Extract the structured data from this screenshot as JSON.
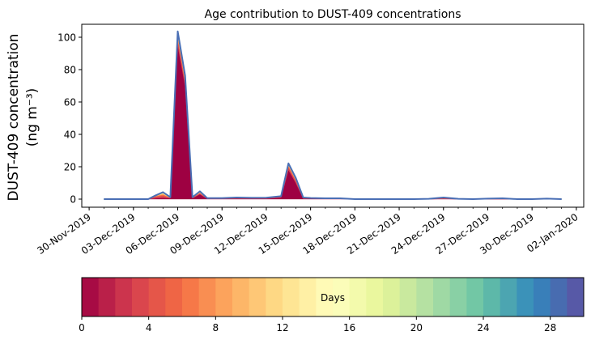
{
  "chart_data": {
    "type": "area",
    "title": "Age contribution to DUST-409 concentrations",
    "ylabel_line1": "DUST-409 concentration",
    "ylabel_line2": "(ng m⁻³)",
    "xlabel": "",
    "ylim": [
      -5,
      108
    ],
    "y_ticks": [
      0,
      20,
      40,
      60,
      80,
      100
    ],
    "x_range": [
      "2019-11-29T12:00",
      "2020-01-02T12:00"
    ],
    "x_ticks": [
      {
        "date": "2019-11-30",
        "label": "30-Nov-2019"
      },
      {
        "date": "2019-12-03",
        "label": "03-Dec-2019"
      },
      {
        "date": "2019-12-06",
        "label": "06-Dec-2019"
      },
      {
        "date": "2019-12-09",
        "label": "09-Dec-2019"
      },
      {
        "date": "2019-12-12",
        "label": "12-Dec-2019"
      },
      {
        "date": "2019-12-15",
        "label": "15-Dec-2019"
      },
      {
        "date": "2019-12-18",
        "label": "18-Dec-2019"
      },
      {
        "date": "2019-12-21",
        "label": "21-Dec-2019"
      },
      {
        "date": "2019-12-24",
        "label": "24-Dec-2019"
      },
      {
        "date": "2019-12-27",
        "label": "27-Dec-2019"
      },
      {
        "date": "2019-12-30",
        "label": "30-Dec-2019"
      },
      {
        "date": "2020-01-02",
        "label": "02-Jan-2020"
      }
    ],
    "x": [
      "2019-12-01",
      "2019-12-02",
      "2019-12-03",
      "2019-12-04",
      "2019-12-04T12:00",
      "2019-12-05",
      "2019-12-05T12:00",
      "2019-12-06",
      "2019-12-06T12:00",
      "2019-12-07",
      "2019-12-07T12:00",
      "2019-12-08",
      "2019-12-09",
      "2019-12-10",
      "2019-12-11",
      "2019-12-12",
      "2019-12-13",
      "2019-12-13T12:00",
      "2019-12-14",
      "2019-12-14T12:00",
      "2019-12-15",
      "2019-12-16",
      "2019-12-17",
      "2019-12-18",
      "2019-12-19",
      "2019-12-20",
      "2019-12-21",
      "2019-12-22",
      "2019-12-23",
      "2019-12-24",
      "2019-12-25",
      "2019-12-26",
      "2019-12-27",
      "2019-12-28",
      "2019-12-29",
      "2019-12-30",
      "2019-12-31",
      "2020-01-01"
    ],
    "series": [
      {
        "color": "#9e0142",
        "values": [
          0,
          0,
          0,
          0,
          0.5,
          0.8,
          0.5,
          95,
          70,
          0.5,
          3,
          0.2,
          0.2,
          0.3,
          0.3,
          0.3,
          1,
          18,
          10,
          0.3,
          0.3,
          0.2,
          0.2,
          0,
          0,
          0,
          0,
          0,
          0,
          0.2,
          0,
          0,
          0,
          0,
          0,
          0,
          0.1,
          0
        ]
      },
      {
        "color": "#d53e4f",
        "values": [
          0,
          0,
          0,
          0,
          1,
          1.2,
          0.3,
          3,
          2,
          0.3,
          0.5,
          0.2,
          0.2,
          0.3,
          0.2,
          0.3,
          0.4,
          1.5,
          1,
          0.3,
          0.2,
          0.2,
          0.2,
          0,
          0,
          0,
          0,
          0,
          0.1,
          0.3,
          0.1,
          0,
          0.1,
          0.2,
          0,
          0,
          0.1,
          0
        ]
      },
      {
        "color": "#f46d43",
        "values": [
          0,
          0,
          0,
          0,
          0.3,
          0.8,
          0.2,
          2,
          1.5,
          0.2,
          0.3,
          0.1,
          0.1,
          0.2,
          0.1,
          0.1,
          0.2,
          1,
          0.8,
          0.2,
          0.1,
          0.1,
          0.1,
          0,
          0,
          0,
          0,
          0,
          0.1,
          0.2,
          0.1,
          0,
          0.1,
          0.1,
          0,
          0,
          0.1,
          0
        ]
      },
      {
        "color": "#fdae61",
        "values": [
          0,
          0,
          0,
          0,
          0.2,
          0.5,
          0.1,
          1.2,
          1,
          0.1,
          0.3,
          0.1,
          0.1,
          0.1,
          0.1,
          0.1,
          0.1,
          0.6,
          0.4,
          0.1,
          0.1,
          0,
          0,
          0,
          0,
          0,
          0,
          0,
          0,
          0.1,
          0,
          0,
          0.1,
          0.1,
          0,
          0,
          0,
          0
        ]
      },
      {
        "color": "#fee08b",
        "values": [
          0,
          0,
          0,
          0,
          0.1,
          0.3,
          0.1,
          0.8,
          0.6,
          0.1,
          0.2,
          0,
          0,
          0.1,
          0.1,
          0.1,
          0.1,
          0.4,
          0.3,
          0.1,
          0,
          0,
          0,
          0,
          0,
          0,
          0,
          0,
          0,
          0.1,
          0,
          0,
          0,
          0.1,
          0,
          0,
          0,
          0
        ]
      },
      {
        "color": "#e6f598",
        "values": [
          0,
          0,
          0,
          0,
          0.1,
          0.2,
          0,
          0.5,
          0.4,
          0,
          0.1,
          0,
          0,
          0,
          0,
          0,
          0,
          0.2,
          0.2,
          0,
          0,
          0,
          0,
          0,
          0,
          0,
          0,
          0,
          0,
          0.1,
          0,
          0,
          0,
          0,
          0,
          0,
          0,
          0
        ]
      },
      {
        "color": "#abdda4",
        "values": [
          0,
          0,
          0,
          0,
          0.1,
          0.2,
          0,
          0.4,
          0.3,
          0,
          0.1,
          0,
          0,
          0,
          0,
          0,
          0,
          0.1,
          0.1,
          0,
          0,
          0,
          0,
          0,
          0,
          0,
          0,
          0,
          0,
          0,
          0,
          0,
          0,
          0,
          0,
          0,
          0,
          0
        ]
      },
      {
        "color": "#66c2a5",
        "values": [
          0,
          0,
          0,
          0,
          0,
          0.1,
          0,
          0.3,
          0.2,
          0,
          0.1,
          0,
          0,
          0,
          0,
          0,
          0,
          0.1,
          0.1,
          0,
          0,
          0,
          0,
          0,
          0,
          0,
          0,
          0,
          0,
          0,
          0,
          0,
          0,
          0,
          0,
          0,
          0,
          0
        ]
      },
      {
        "color": "#3288bd",
        "values": [
          0,
          0,
          0,
          0,
          0,
          0.1,
          0,
          0.2,
          0.2,
          0,
          0.1,
          0,
          0,
          0,
          0,
          0,
          0,
          0.1,
          0.1,
          0,
          0,
          0,
          0,
          0,
          0,
          0,
          0,
          0,
          0,
          0,
          0,
          0,
          0,
          0,
          0,
          0,
          0,
          0
        ]
      },
      {
        "color": "#5e4fa2",
        "values": [
          0,
          0,
          0,
          0,
          0,
          0.1,
          0,
          0.2,
          0.1,
          0,
          0.1,
          0,
          0,
          0,
          0,
          0,
          0,
          0.1,
          0,
          0,
          0,
          0,
          0,
          0,
          0,
          0,
          0,
          0,
          0,
          0,
          0,
          0,
          0,
          0,
          0,
          0,
          0,
          0
        ]
      }
    ],
    "total_line_color": "#4a6fb5",
    "grid": false,
    "legend": "none",
    "colorbar": {
      "label": "Days",
      "range": [
        0,
        30
      ],
      "bins": 30,
      "ticks": [
        0,
        4,
        8,
        12,
        16,
        20,
        24,
        28
      ],
      "colormap": [
        "#9e0142",
        "#d53e4f",
        "#f46d43",
        "#fdae61",
        "#fee08b",
        "#ffffbf",
        "#e6f598",
        "#abdda4",
        "#66c2a5",
        "#3288bd",
        "#5e4fa2"
      ]
    }
  }
}
